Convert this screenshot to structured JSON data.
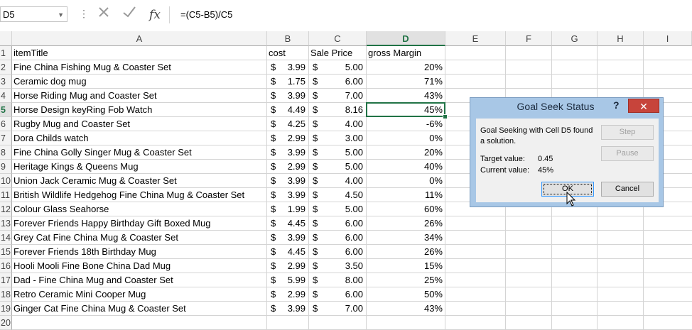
{
  "formula_bar": {
    "name_box": "D5",
    "cancel_icon": "x-icon",
    "enter_icon": "check-icon",
    "fx_label": "fx",
    "formula": "=(C5-B5)/C5"
  },
  "columns": [
    "A",
    "B",
    "C",
    "D",
    "E",
    "F",
    "G",
    "H",
    "I"
  ],
  "header_row": {
    "row": "1",
    "itemTitle": "itemTitle",
    "cost": "cost",
    "sale": "Sale Price",
    "margin": "gross Margin"
  },
  "rows": [
    {
      "row": "2",
      "title": "Fine China Fishing Mug & Coaster Set",
      "cost": "3.99",
      "sale": "5.00",
      "margin": "20%"
    },
    {
      "row": "3",
      "title": "Ceramic dog mug",
      "cost": "1.75",
      "sale": "6.00",
      "margin": "71%"
    },
    {
      "row": "4",
      "title": "Horse Riding Mug and Coaster Set",
      "cost": "3.99",
      "sale": "7.00",
      "margin": "43%"
    },
    {
      "row": "5",
      "title": "Horse Design keyRing Fob Watch",
      "cost": "4.49",
      "sale": "8.16",
      "margin": "45%"
    },
    {
      "row": "6",
      "title": "Rugby Mug and Coaster Set",
      "cost": "4.25",
      "sale": "4.00",
      "margin": "-6%"
    },
    {
      "row": "7",
      "title": "Dora Childs watch",
      "cost": "2.99",
      "sale": "3.00",
      "margin": "0%"
    },
    {
      "row": "8",
      "title": "Fine China Golly Singer Mug & Coaster Set",
      "cost": "3.99",
      "sale": "5.00",
      "margin": "20%"
    },
    {
      "row": "9",
      "title": "Heritage Kings & Queens Mug",
      "cost": "2.99",
      "sale": "5.00",
      "margin": "40%"
    },
    {
      "row": "10",
      "title": "Union Jack Ceramic Mug & Coaster Set",
      "cost": "3.99",
      "sale": "4.00",
      "margin": "0%"
    },
    {
      "row": "11",
      "title": "British Wildlife Hedgehog Fine China Mug & Coaster Set",
      "cost": "3.99",
      "sale": "4.50",
      "margin": "11%"
    },
    {
      "row": "12",
      "title": "Colour Glass Seahorse",
      "cost": "1.99",
      "sale": "5.00",
      "margin": "60%"
    },
    {
      "row": "13",
      "title": "Forever Friends Happy Birthday Gift Boxed Mug",
      "cost": "4.45",
      "sale": "6.00",
      "margin": "26%"
    },
    {
      "row": "14",
      "title": "Grey Cat Fine China Mug & Coaster Set",
      "cost": "3.99",
      "sale": "6.00",
      "margin": "34%"
    },
    {
      "row": "15",
      "title": "Forever Friends 18th Birthday Mug",
      "cost": "4.45",
      "sale": "6.00",
      "margin": "26%"
    },
    {
      "row": "16",
      "title": "Hooli Mooli Fine Bone China Dad Mug",
      "cost": "2.99",
      "sale": "3.50",
      "margin": "15%"
    },
    {
      "row": "17",
      "title": "Dad - Fine China Mug and Coaster Set",
      "cost": "5.99",
      "sale": "8.00",
      "margin": "25%"
    },
    {
      "row": "18",
      "title": "Retro Ceramic Mini Cooper Mug",
      "cost": "2.99",
      "sale": "6.00",
      "margin": "50%"
    },
    {
      "row": "19",
      "title": "Ginger Cat Fine China Mug & Coaster Set",
      "cost": "3.99",
      "sale": "7.00",
      "margin": "43%"
    },
    {
      "row": "20",
      "title": "",
      "cost": "",
      "sale": "",
      "margin": ""
    }
  ],
  "currency_symbol": "$",
  "selected_cell": "D5",
  "accent_color": "#217346",
  "dialog": {
    "title": "Goal Seek Status",
    "help_label": "?",
    "close_icon": "close-icon",
    "message": "Goal Seeking with Cell D5 found a solution.",
    "target_label": "Target value:",
    "target_value": "0.45",
    "current_label": "Current value:",
    "current_value": "45%",
    "step_label": "Step",
    "pause_label": "Pause",
    "ok_label": "OK",
    "cancel_label": "Cancel"
  }
}
